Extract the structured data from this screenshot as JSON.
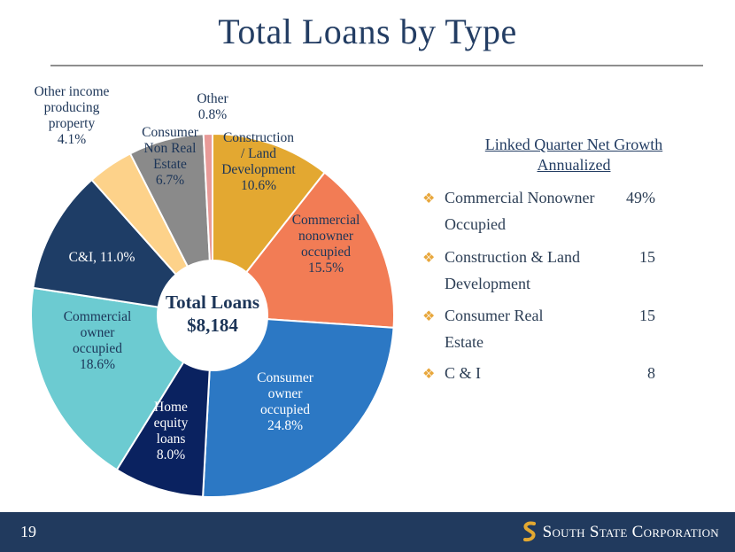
{
  "title": "Total Loans by Type",
  "chart_data": {
    "type": "pie",
    "subtype": "donut",
    "center_label": [
      "Total Loans",
      "$8,184"
    ],
    "slices": [
      {
        "label_lines": [
          "Construction",
          "/ Land",
          "Development",
          "10.6%"
        ],
        "value": 10.6,
        "color": "#e3a831",
        "text_color": "#1c3558"
      },
      {
        "label_lines": [
          "Commercial",
          "nonowner",
          "occupied",
          "15.5%"
        ],
        "value": 15.5,
        "color": "#f27c55",
        "text_color": "#1c3558"
      },
      {
        "label_lines": [
          "Consumer",
          "owner",
          "occupied",
          "24.8%"
        ],
        "value": 24.8,
        "color": "#2c78c4",
        "text_color": "#ffffff"
      },
      {
        "label_lines": [
          "Home",
          "equity",
          "loans",
          "8.0%"
        ],
        "value": 8.0,
        "color": "#0a2260",
        "text_color": "#ffffff"
      },
      {
        "label_lines": [
          "Commercial",
          "owner",
          "occupied",
          "18.6%"
        ],
        "value": 18.6,
        "color": "#6ccbd1",
        "text_color": "#1c3558"
      },
      {
        "label_lines": [
          "C&I, 11.0%"
        ],
        "value": 11.0,
        "color": "#1e3d66",
        "text_color": "#ffffff"
      },
      {
        "label_lines": [
          "Other income",
          "producing",
          "property",
          "4.1%"
        ],
        "value": 4.1,
        "color": "#fdd28a",
        "text_color": "#1c3558"
      },
      {
        "label_lines": [
          "Consumer",
          "Non Real",
          "Estate",
          "6.7%"
        ],
        "value": 6.7,
        "color": "#8a8a8a",
        "text_color": "#1c3558"
      },
      {
        "label_lines": [
          "Other",
          "0.8%"
        ],
        "value": 0.8,
        "color": "#e89a98",
        "text_color": "#1c3558"
      }
    ]
  },
  "growth": {
    "title_lines": [
      "Linked Quarter Net Growth",
      "Annualized"
    ],
    "items": [
      {
        "name_lines": [
          "Commercial Nonowner",
          "Occupied"
        ],
        "value": "49%"
      },
      {
        "name_lines": [
          "Construction & Land",
          "Development"
        ],
        "value": "15"
      },
      {
        "name_lines": [
          "Consumer Real",
          "Estate"
        ],
        "value": "15"
      },
      {
        "name_lines": [
          "C & I"
        ],
        "value": "8"
      }
    ]
  },
  "footer": {
    "page_number": "19",
    "logo_text": "South State Corporation",
    "colors": {
      "bar": "#213a5e",
      "logo_mark": "#e3a831"
    }
  }
}
